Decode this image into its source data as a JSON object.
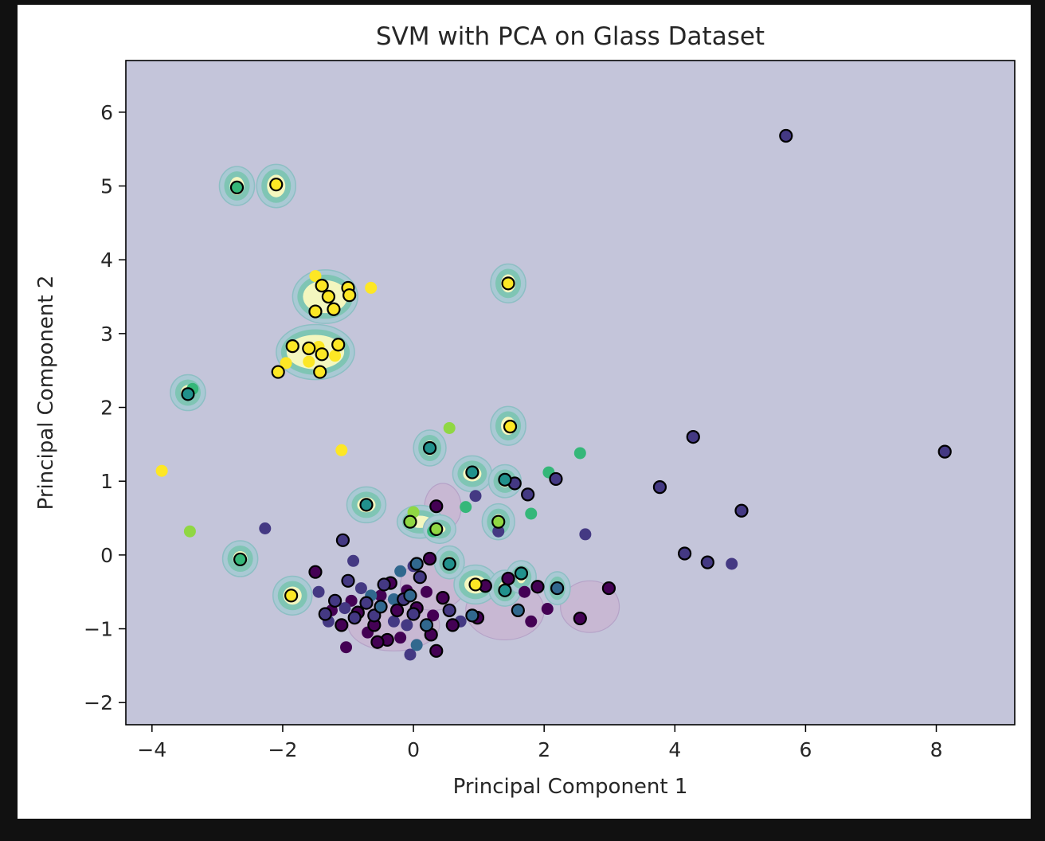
{
  "chart_data": {
    "type": "scatter",
    "title": "SVM with PCA on Glass Dataset",
    "xlabel": "Principal Component 1",
    "ylabel": "Principal Component 2",
    "xlim": [
      -4.4,
      9.2
    ],
    "ylim": [
      -2.3,
      6.7
    ],
    "xticks": [
      -4,
      -2,
      0,
      2,
      4,
      6,
      8
    ],
    "yticks": [
      -2,
      -1,
      0,
      1,
      2,
      3,
      4,
      5,
      6
    ],
    "grid": false,
    "background_color": "#c4c5da",
    "class_colors": [
      "#440154",
      "#443983",
      "#31688e",
      "#21918c",
      "#35b779",
      "#90d743",
      "#fde725"
    ],
    "region_fill_color": "#f4f7bf",
    "region_edge_color": "#7fc5b4",
    "low_region_color": "#c9b7d3",
    "regions": [
      {
        "cx": -2.7,
        "cy": 5.0,
        "rx": 0.22,
        "ry": 0.22
      },
      {
        "cx": -2.1,
        "cy": 5.0,
        "rx": 0.25,
        "ry": 0.25
      },
      {
        "cx": -1.35,
        "cy": 3.5,
        "rx": 0.45,
        "ry": 0.32
      },
      {
        "cx": -1.5,
        "cy": 2.75,
        "rx": 0.55,
        "ry": 0.33
      },
      {
        "cx": 1.45,
        "cy": 3.68,
        "rx": 0.22,
        "ry": 0.22
      },
      {
        "cx": 1.45,
        "cy": 1.75,
        "rx": 0.22,
        "ry": 0.22
      },
      {
        "cx": -3.45,
        "cy": 2.2,
        "rx": 0.22,
        "ry": 0.2
      },
      {
        "cx": 0.25,
        "cy": 1.45,
        "rx": 0.2,
        "ry": 0.2
      },
      {
        "cx": 0.9,
        "cy": 1.1,
        "rx": 0.25,
        "ry": 0.2
      },
      {
        "cx": 1.4,
        "cy": 1.0,
        "rx": 0.2,
        "ry": 0.18
      },
      {
        "cx": -0.72,
        "cy": 0.68,
        "rx": 0.25,
        "ry": 0.2
      },
      {
        "cx": 0.1,
        "cy": 0.45,
        "rx": 0.3,
        "ry": 0.18
      },
      {
        "cx": 0.4,
        "cy": 0.35,
        "rx": 0.2,
        "ry": 0.15
      },
      {
        "cx": 1.3,
        "cy": 0.45,
        "rx": 0.2,
        "ry": 0.2
      },
      {
        "cx": -2.65,
        "cy": -0.05,
        "rx": 0.22,
        "ry": 0.2
      },
      {
        "cx": -1.85,
        "cy": -0.55,
        "rx": 0.25,
        "ry": 0.22
      },
      {
        "cx": 0.95,
        "cy": -0.4,
        "rx": 0.28,
        "ry": 0.22
      },
      {
        "cx": 0.55,
        "cy": -0.1,
        "rx": 0.18,
        "ry": 0.18
      },
      {
        "cx": 1.4,
        "cy": -0.45,
        "rx": 0.2,
        "ry": 0.2
      },
      {
        "cx": 1.65,
        "cy": -0.3,
        "rx": 0.18,
        "ry": 0.18
      },
      {
        "cx": 2.2,
        "cy": -0.45,
        "rx": 0.15,
        "ry": 0.18
      }
    ],
    "low_regions": [
      {
        "cx": 0.45,
        "cy": 0.65,
        "rx": 0.28,
        "ry": 0.32
      },
      {
        "cx": -0.3,
        "cy": -0.95,
        "rx": 0.7,
        "ry": 0.35
      },
      {
        "cx": 0.3,
        "cy": -0.4,
        "rx": 0.5,
        "ry": 0.35
      },
      {
        "cx": 1.4,
        "cy": -0.75,
        "rx": 0.6,
        "ry": 0.4
      },
      {
        "cx": 2.7,
        "cy": -0.7,
        "rx": 0.45,
        "ry": 0.35
      }
    ],
    "points": [
      {
        "x": 5.7,
        "y": 5.68,
        "c": 1,
        "sv": true
      },
      {
        "x": 8.13,
        "y": 1.4,
        "c": 1,
        "sv": true
      },
      {
        "x": 4.28,
        "y": 1.6,
        "c": 1,
        "sv": true
      },
      {
        "x": 3.77,
        "y": 0.92,
        "c": 1,
        "sv": true
      },
      {
        "x": 5.02,
        "y": 0.6,
        "c": 1,
        "sv": true
      },
      {
        "x": 4.15,
        "y": 0.02,
        "c": 1,
        "sv": true
      },
      {
        "x": 4.5,
        "y": -0.1,
        "c": 1,
        "sv": true
      },
      {
        "x": 4.87,
        "y": -0.12,
        "c": 1,
        "sv": false
      },
      {
        "x": 2.63,
        "y": 0.28,
        "c": 1,
        "sv": false
      },
      {
        "x": 2.18,
        "y": 1.03,
        "c": 1,
        "sv": true
      },
      {
        "x": 1.55,
        "y": 0.97,
        "c": 1,
        "sv": true
      },
      {
        "x": 1.75,
        "y": 0.82,
        "c": 1,
        "sv": true
      },
      {
        "x": 0.95,
        "y": 0.8,
        "c": 1,
        "sv": false
      },
      {
        "x": 1.3,
        "y": 0.32,
        "c": 1,
        "sv": false
      },
      {
        "x": -2.27,
        "y": 0.36,
        "c": 1,
        "sv": false
      },
      {
        "x": -1.08,
        "y": 0.2,
        "c": 1,
        "sv": true
      },
      {
        "x": -0.92,
        "y": -0.08,
        "c": 1,
        "sv": false
      },
      {
        "x": 2.99,
        "y": -0.45,
        "c": 0,
        "sv": true
      },
      {
        "x": 2.55,
        "y": -0.86,
        "c": 0,
        "sv": true
      },
      {
        "x": 1.9,
        "y": -0.43,
        "c": 0,
        "sv": true
      },
      {
        "x": 2.05,
        "y": -0.73,
        "c": 0,
        "sv": false
      },
      {
        "x": 1.7,
        "y": -0.5,
        "c": 0,
        "sv": false
      },
      {
        "x": 1.8,
        "y": -0.9,
        "c": 0,
        "sv": false
      },
      {
        "x": 1.1,
        "y": -0.42,
        "c": 0,
        "sv": true
      },
      {
        "x": 1.45,
        "y": -0.32,
        "c": 0,
        "sv": true
      },
      {
        "x": 0.35,
        "y": 0.66,
        "c": 0,
        "sv": true
      },
      {
        "x": 0.98,
        "y": -0.85,
        "c": 0,
        "sv": true
      },
      {
        "x": -1.5,
        "y": -0.23,
        "c": 0,
        "sv": true
      },
      {
        "x": -1.03,
        "y": -1.25,
        "c": 0,
        "sv": false
      },
      {
        "x": 0.35,
        "y": -1.3,
        "c": 0,
        "sv": true
      },
      {
        "x": 0.27,
        "y": -1.08,
        "c": 0,
        "sv": true
      },
      {
        "x": -0.05,
        "y": -1.35,
        "c": 1,
        "sv": false
      },
      {
        "x": 0.05,
        "y": -1.22,
        "c": 2,
        "sv": false
      },
      {
        "x": 0.25,
        "y": -0.05,
        "c": 0,
        "sv": true
      },
      {
        "x": 0.45,
        "y": -0.58,
        "c": 0,
        "sv": true
      },
      {
        "x": 0.6,
        "y": -0.95,
        "c": 0,
        "sv": true
      },
      {
        "x": 0.2,
        "y": -0.5,
        "c": 0,
        "sv": false
      },
      {
        "x": 0.05,
        "y": -0.72,
        "c": 0,
        "sv": true
      },
      {
        "x": -0.1,
        "y": -0.48,
        "c": 0,
        "sv": false
      },
      {
        "x": -0.25,
        "y": -0.75,
        "c": 0,
        "sv": true
      },
      {
        "x": -0.35,
        "y": -0.38,
        "c": 0,
        "sv": true
      },
      {
        "x": -0.5,
        "y": -0.55,
        "c": 0,
        "sv": false
      },
      {
        "x": -0.6,
        "y": -0.95,
        "c": 0,
        "sv": true
      },
      {
        "x": -0.7,
        "y": -1.05,
        "c": 0,
        "sv": false
      },
      {
        "x": -0.85,
        "y": -0.78,
        "c": 0,
        "sv": true
      },
      {
        "x": -0.95,
        "y": -0.62,
        "c": 0,
        "sv": false
      },
      {
        "x": -1.1,
        "y": -0.95,
        "c": 0,
        "sv": true
      },
      {
        "x": -1.25,
        "y": -0.75,
        "c": 0,
        "sv": false
      },
      {
        "x": -0.4,
        "y": -1.15,
        "c": 0,
        "sv": true
      },
      {
        "x": -0.2,
        "y": -1.12,
        "c": 0,
        "sv": false
      },
      {
        "x": 0.3,
        "y": -0.82,
        "c": 0,
        "sv": false
      },
      {
        "x": -0.55,
        "y": -1.18,
        "c": 0,
        "sv": true
      },
      {
        "x": -0.8,
        "y": -0.45,
        "c": 1,
        "sv": false
      },
      {
        "x": -1.0,
        "y": -0.35,
        "c": 1,
        "sv": true
      },
      {
        "x": -1.2,
        "y": -0.62,
        "c": 1,
        "sv": true
      },
      {
        "x": -1.35,
        "y": -0.8,
        "c": 1,
        "sv": true
      },
      {
        "x": -1.45,
        "y": -0.5,
        "c": 1,
        "sv": false
      },
      {
        "x": -1.3,
        "y": -0.9,
        "c": 1,
        "sv": false
      },
      {
        "x": -0.72,
        "y": -0.65,
        "c": 1,
        "sv": true
      },
      {
        "x": -0.6,
        "y": -0.82,
        "c": 1,
        "sv": true
      },
      {
        "x": -0.45,
        "y": -0.4,
        "c": 1,
        "sv": true
      },
      {
        "x": -0.3,
        "y": -0.9,
        "c": 1,
        "sv": false
      },
      {
        "x": -0.15,
        "y": -0.6,
        "c": 1,
        "sv": true
      },
      {
        "x": 0.0,
        "y": -0.8,
        "c": 1,
        "sv": true
      },
      {
        "x": 0.1,
        "y": -0.3,
        "c": 1,
        "sv": true
      },
      {
        "x": 0.0,
        "y": -0.15,
        "c": 1,
        "sv": false
      },
      {
        "x": -0.1,
        "y": -0.95,
        "c": 1,
        "sv": false
      },
      {
        "x": -0.9,
        "y": -0.85,
        "c": 1,
        "sv": true
      },
      {
        "x": -1.05,
        "y": -0.72,
        "c": 1,
        "sv": false
      },
      {
        "x": 0.55,
        "y": -0.75,
        "c": 1,
        "sv": true
      },
      {
        "x": 0.72,
        "y": -0.9,
        "c": 1,
        "sv": false
      },
      {
        "x": 0.05,
        "y": -0.12,
        "c": 2,
        "sv": true
      },
      {
        "x": -0.2,
        "y": -0.22,
        "c": 2,
        "sv": false
      },
      {
        "x": -0.05,
        "y": -0.55,
        "c": 2,
        "sv": true
      },
      {
        "x": -0.5,
        "y": -0.7,
        "c": 2,
        "sv": true
      },
      {
        "x": -0.65,
        "y": -0.55,
        "c": 2,
        "sv": false
      },
      {
        "x": 0.9,
        "y": -0.82,
        "c": 2,
        "sv": true
      },
      {
        "x": -0.3,
        "y": -0.6,
        "c": 2,
        "sv": false
      },
      {
        "x": 0.2,
        "y": -0.95,
        "c": 2,
        "sv": true
      },
      {
        "x": 2.2,
        "y": -0.45,
        "c": 2,
        "sv": true
      },
      {
        "x": 1.6,
        "y": -0.75,
        "c": 2,
        "sv": true
      },
      {
        "x": 1.4,
        "y": -0.48,
        "c": 3,
        "sv": true
      },
      {
        "x": 1.65,
        "y": -0.25,
        "c": 3,
        "sv": true
      },
      {
        "x": 0.55,
        "y": -0.12,
        "c": 3,
        "sv": true
      },
      {
        "x": 0.9,
        "y": 1.12,
        "c": 3,
        "sv": true
      },
      {
        "x": 1.4,
        "y": 1.02,
        "c": 3,
        "sv": true
      },
      {
        "x": -0.72,
        "y": 0.68,
        "c": 3,
        "sv": true
      },
      {
        "x": 0.25,
        "y": 1.45,
        "c": 3,
        "sv": true
      },
      {
        "x": -3.45,
        "y": 2.18,
        "c": 3,
        "sv": true
      },
      {
        "x": -2.7,
        "y": 4.98,
        "c": 4,
        "sv": true
      },
      {
        "x": -3.38,
        "y": 2.25,
        "c": 4,
        "sv": false
      },
      {
        "x": 2.55,
        "y": 1.38,
        "c": 4,
        "sv": false
      },
      {
        "x": 2.07,
        "y": 1.12,
        "c": 4,
        "sv": false
      },
      {
        "x": 0.8,
        "y": 0.65,
        "c": 4,
        "sv": false
      },
      {
        "x": 1.8,
        "y": 0.56,
        "c": 4,
        "sv": false
      },
      {
        "x": 0.3,
        "y": 0.32,
        "c": 4,
        "sv": false
      },
      {
        "x": -2.65,
        "y": -0.06,
        "c": 4,
        "sv": true
      },
      {
        "x": 1.3,
        "y": 0.45,
        "c": 5,
        "sv": true
      },
      {
        "x": -0.05,
        "y": 0.45,
        "c": 5,
        "sv": true
      },
      {
        "x": 0.35,
        "y": 0.35,
        "c": 5,
        "sv": true
      },
      {
        "x": 0.55,
        "y": 1.72,
        "c": 5,
        "sv": false
      },
      {
        "x": -3.42,
        "y": 0.32,
        "c": 5,
        "sv": false
      },
      {
        "x": 0.0,
        "y": 0.58,
        "c": 5,
        "sv": false
      },
      {
        "x": -2.1,
        "y": 5.02,
        "c": 6,
        "sv": true
      },
      {
        "x": 1.45,
        "y": 3.68,
        "c": 6,
        "sv": true
      },
      {
        "x": 1.48,
        "y": 1.74,
        "c": 6,
        "sv": true
      },
      {
        "x": -1.5,
        "y": 3.78,
        "c": 6,
        "sv": false
      },
      {
        "x": -1.4,
        "y": 3.65,
        "c": 6,
        "sv": true
      },
      {
        "x": -1.3,
        "y": 3.5,
        "c": 6,
        "sv": true
      },
      {
        "x": -1.0,
        "y": 3.62,
        "c": 6,
        "sv": true
      },
      {
        "x": -0.98,
        "y": 3.52,
        "c": 6,
        "sv": true
      },
      {
        "x": -0.65,
        "y": 3.62,
        "c": 6,
        "sv": false
      },
      {
        "x": -1.5,
        "y": 3.3,
        "c": 6,
        "sv": true
      },
      {
        "x": -1.22,
        "y": 3.33,
        "c": 6,
        "sv": true
      },
      {
        "x": -1.85,
        "y": 2.83,
        "c": 6,
        "sv": true
      },
      {
        "x": -1.6,
        "y": 2.8,
        "c": 6,
        "sv": true
      },
      {
        "x": -1.4,
        "y": 2.72,
        "c": 6,
        "sv": true
      },
      {
        "x": -1.15,
        "y": 2.85,
        "c": 6,
        "sv": true
      },
      {
        "x": -1.45,
        "y": 2.82,
        "c": 6,
        "sv": false
      },
      {
        "x": -1.6,
        "y": 2.62,
        "c": 6,
        "sv": false
      },
      {
        "x": -1.2,
        "y": 2.7,
        "c": 6,
        "sv": false
      },
      {
        "x": -1.95,
        "y": 2.6,
        "c": 6,
        "sv": false
      },
      {
        "x": -2.07,
        "y": 2.48,
        "c": 6,
        "sv": true
      },
      {
        "x": -1.43,
        "y": 2.48,
        "c": 6,
        "sv": true
      },
      {
        "x": -1.1,
        "y": 1.42,
        "c": 6,
        "sv": false
      },
      {
        "x": -3.85,
        "y": 1.14,
        "c": 6,
        "sv": false
      },
      {
        "x": -1.87,
        "y": -0.55,
        "c": 6,
        "sv": true
      },
      {
        "x": 0.95,
        "y": -0.4,
        "c": 6,
        "sv": true
      }
    ]
  }
}
